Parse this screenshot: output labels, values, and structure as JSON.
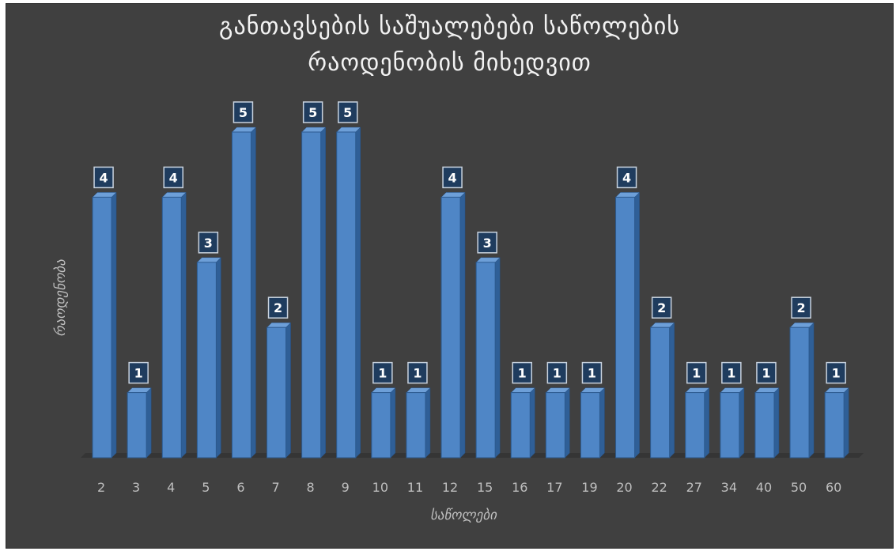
{
  "chart_data": {
    "type": "bar",
    "title_lines": [
      "განთავსების საშუალებები საწოლების",
      "რაოდენობის მიხედვით"
    ],
    "xlabel": "საწოლები",
    "ylabel": "რაოდენობა",
    "categories": [
      "2",
      "3",
      "4",
      "5",
      "6",
      "7",
      "8",
      "9",
      "10",
      "11",
      "12",
      "15",
      "16",
      "17",
      "19",
      "20",
      "22",
      "27",
      "34",
      "40",
      "50",
      "60"
    ],
    "values": [
      4,
      1,
      4,
      3,
      5,
      2,
      5,
      5,
      1,
      1,
      4,
      3,
      1,
      1,
      1,
      4,
      2,
      1,
      1,
      1,
      2,
      1
    ],
    "ylim": [
      0,
      5
    ],
    "grid": false,
    "legend": "none",
    "data_labels": true,
    "bar_color": "#4f86c6",
    "background_color": "#404040"
  }
}
